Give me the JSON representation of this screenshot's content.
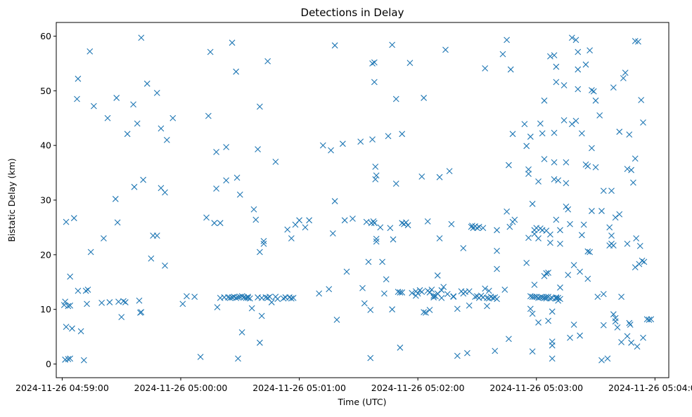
{
  "chart_data": {
    "type": "scatter",
    "title": "Detections in Delay",
    "xlabel": "Time (UTC)",
    "ylabel": "Bistatic Delay (km)",
    "x_unit": "seconds after 2024-11-26 04:59:00",
    "xlim": [
      -3,
      307
    ],
    "ylim": [
      -2.5,
      62.5
    ],
    "x_ticks": [
      0,
      60,
      120,
      180,
      240,
      300
    ],
    "x_tick_labels": [
      "2024-11-26 04:59:00",
      "2024-11-26 05:00:00",
      "2024-11-26 05:01:00",
      "2024-11-26 05:02:00",
      "2024-11-26 05:03:00",
      "2024-11-26 05:04:00"
    ],
    "y_ticks": [
      0,
      10,
      20,
      30,
      40,
      50,
      60
    ],
    "y_tick_labels": [
      "0",
      "10",
      "20",
      "30",
      "40",
      "50",
      "60"
    ],
    "marker": "x",
    "color": "#1f77b4",
    "grid": false,
    "points": [
      [
        1,
        10.8
      ],
      [
        1.5,
        11.4
      ],
      [
        2,
        6.8
      ],
      [
        3,
        10.6
      ],
      [
        4,
        10.7
      ],
      [
        1.5,
        0.8
      ],
      [
        3,
        0.9
      ],
      [
        4,
        1
      ],
      [
        5,
        6.5
      ],
      [
        2,
        26
      ],
      [
        4,
        16
      ],
      [
        6,
        26.7
      ],
      [
        8,
        52.2
      ],
      [
        7.5,
        48.5
      ],
      [
        8,
        13.4
      ],
      [
        9.5,
        6
      ],
      [
        11,
        0.7
      ],
      [
        12,
        13.4
      ],
      [
        13,
        13.6
      ],
      [
        12.5,
        11
      ],
      [
        14,
        57.2
      ],
      [
        14.5,
        20.5
      ],
      [
        16,
        47.2
      ],
      [
        20,
        11.2
      ],
      [
        21,
        23
      ],
      [
        23,
        45
      ],
      [
        24,
        11.3
      ],
      [
        27,
        30.2
      ],
      [
        27.5,
        48.7
      ],
      [
        28,
        25.9
      ],
      [
        28.5,
        11.4
      ],
      [
        30,
        8.6
      ],
      [
        31,
        11.5
      ],
      [
        32,
        11.3
      ],
      [
        33,
        42.1
      ],
      [
        36,
        47.5
      ],
      [
        36.5,
        32.4
      ],
      [
        38,
        44
      ],
      [
        39,
        11.6
      ],
      [
        39.5,
        9.4
      ],
      [
        40,
        9.5
      ],
      [
        40,
        59.7
      ],
      [
        41,
        33.7
      ],
      [
        43,
        51.3
      ],
      [
        45,
        19.3
      ],
      [
        46,
        23.5
      ],
      [
        48,
        23.5
      ],
      [
        48,
        49.6
      ],
      [
        50,
        43.1
      ],
      [
        50,
        32.2
      ],
      [
        52,
        31.4
      ],
      [
        52,
        18
      ],
      [
        53,
        41
      ],
      [
        56,
        45
      ],
      [
        61,
        11
      ],
      [
        63,
        12.4
      ],
      [
        67,
        12.3
      ],
      [
        70,
        1.3
      ],
      [
        73,
        26.8
      ],
      [
        74,
        45.4
      ],
      [
        75,
        57.1
      ],
      [
        77,
        25.8
      ],
      [
        78,
        38.8
      ],
      [
        78,
        32.1
      ],
      [
        78.5,
        10.4
      ],
      [
        80,
        25.8
      ],
      [
        80,
        12.1
      ],
      [
        82,
        12.2
      ],
      [
        83,
        33.6
      ],
      [
        83,
        39.7
      ],
      [
        84,
        12.2
      ],
      [
        85,
        12.1
      ],
      [
        86,
        12.2
      ],
      [
        86,
        58.8
      ],
      [
        87,
        12.3
      ],
      [
        88,
        12.1
      ],
      [
        88,
        53.5
      ],
      [
        88.5,
        34.1
      ],
      [
        89,
        12.2
      ],
      [
        89,
        1
      ],
      [
        90,
        12.3
      ],
      [
        90,
        31
      ],
      [
        91,
        12.4
      ],
      [
        91,
        5.8
      ],
      [
        92,
        12.2
      ],
      [
        93,
        12.1
      ],
      [
        94,
        12.3
      ],
      [
        94,
        12.1
      ],
      [
        95,
        12
      ],
      [
        96,
        10.2
      ],
      [
        97,
        28.3
      ],
      [
        98,
        26.4
      ],
      [
        99,
        39.3
      ],
      [
        99,
        12.2
      ],
      [
        100,
        20.5
      ],
      [
        100,
        47.1
      ],
      [
        100,
        3.9
      ],
      [
        101,
        12.1
      ],
      [
        101,
        8.8
      ],
      [
        102,
        22.5
      ],
      [
        102,
        22
      ],
      [
        103,
        12.2
      ],
      [
        104,
        55.4
      ],
      [
        104,
        12.1
      ],
      [
        105,
        12.3
      ],
      [
        106,
        11.3
      ],
      [
        108,
        12.3
      ],
      [
        108,
        37
      ],
      [
        109,
        11.9
      ],
      [
        112,
        12
      ],
      [
        113,
        12.2
      ],
      [
        114,
        24.6
      ],
      [
        115,
        12.2
      ],
      [
        116,
        12
      ],
      [
        116,
        23
      ],
      [
        117,
        12.1
      ],
      [
        118,
        25.5
      ],
      [
        120,
        26.3
      ],
      [
        123,
        25
      ],
      [
        125,
        26.3
      ],
      [
        130,
        12.9
      ],
      [
        132,
        40
      ],
      [
        135,
        13.7
      ],
      [
        136,
        39.1
      ],
      [
        137,
        23.9
      ],
      [
        138,
        29.8
      ],
      [
        138,
        58.3
      ],
      [
        139,
        8.1
      ],
      [
        142,
        40.3
      ],
      [
        143,
        26.3
      ],
      [
        144,
        16.9
      ],
      [
        147,
        26.6
      ],
      [
        151,
        40.7
      ],
      [
        152,
        13.9
      ],
      [
        153,
        11.1
      ],
      [
        154,
        26
      ],
      [
        155,
        18.7
      ],
      [
        156,
        9.9
      ],
      [
        156,
        1.1
      ],
      [
        156.5,
        25.8
      ],
      [
        157,
        41.1
      ],
      [
        157,
        55
      ],
      [
        157.5,
        26.1
      ],
      [
        158,
        55.2
      ],
      [
        158,
        25.8
      ],
      [
        158,
        51.6
      ],
      [
        158.5,
        36.1
      ],
      [
        158.5,
        33.8
      ],
      [
        159,
        22.9
      ],
      [
        159,
        22.4
      ],
      [
        159,
        34.5
      ],
      [
        161,
        25
      ],
      [
        162,
        18.7
      ],
      [
        163,
        12.9
      ],
      [
        164,
        15.5
      ],
      [
        165,
        41.7
      ],
      [
        166,
        24.9
      ],
      [
        167,
        58.4
      ],
      [
        167,
        10
      ],
      [
        167.5,
        22.8
      ],
      [
        169,
        48.5
      ],
      [
        169,
        33
      ],
      [
        170,
        13.2
      ],
      [
        171,
        13.1
      ],
      [
        171,
        3
      ],
      [
        172,
        13.1
      ],
      [
        172,
        25.8
      ],
      [
        172,
        42.1
      ],
      [
        173,
        25.6
      ],
      [
        174,
        25.9
      ],
      [
        175,
        25.4
      ],
      [
        176,
        55.1
      ],
      [
        177,
        13
      ],
      [
        179,
        13.3
      ],
      [
        179,
        12.5
      ],
      [
        180,
        12.9
      ],
      [
        181,
        13.5
      ],
      [
        182,
        13.2
      ],
      [
        182,
        34.3
      ],
      [
        183,
        48.7
      ],
      [
        183,
        9.5
      ],
      [
        184,
        9.4
      ],
      [
        185,
        26.1
      ],
      [
        185,
        13.4
      ],
      [
        186,
        13.1
      ],
      [
        186,
        9.9
      ],
      [
        187,
        13.6
      ],
      [
        188,
        12.5
      ],
      [
        188,
        12.2
      ],
      [
        189,
        12.4
      ],
      [
        190,
        12.9
      ],
      [
        190,
        16.2
      ],
      [
        191,
        23
      ],
      [
        191,
        34.2
      ],
      [
        192,
        13.5
      ],
      [
        192,
        12.1
      ],
      [
        193,
        14.1
      ],
      [
        194,
        57.5
      ],
      [
        195,
        12.8
      ],
      [
        196,
        35.3
      ],
      [
        197,
        25.6
      ],
      [
        198,
        12.4
      ],
      [
        198,
        12.3
      ],
      [
        200,
        10.1
      ],
      [
        200,
        1.5
      ],
      [
        202,
        13.3
      ],
      [
        203,
        21.2
      ],
      [
        203,
        12.9
      ],
      [
        204,
        13.2
      ],
      [
        205,
        2
      ],
      [
        206,
        13.3
      ],
      [
        206,
        10.7
      ],
      [
        207,
        25.1
      ],
      [
        207.5,
        25.3
      ],
      [
        208,
        24.9
      ],
      [
        209,
        25.2
      ],
      [
        209,
        12.3
      ],
      [
        210,
        24.9
      ],
      [
        210,
        12.4
      ],
      [
        211,
        25.1
      ],
      [
        211,
        12.1
      ],
      [
        212,
        12.5
      ],
      [
        213,
        24.9
      ],
      [
        213,
        12.2
      ],
      [
        214,
        54.1
      ],
      [
        214,
        13.8
      ],
      [
        215,
        12.1
      ],
      [
        215,
        10.6
      ],
      [
        216,
        13.4
      ],
      [
        216,
        12
      ],
      [
        217,
        12.3
      ],
      [
        218,
        12.1
      ],
      [
        219,
        12.2
      ],
      [
        219,
        2.4
      ],
      [
        220,
        11.9
      ],
      [
        220,
        24.5
      ],
      [
        220,
        20.7
      ],
      [
        220,
        17.4
      ],
      [
        223,
        56.7
      ],
      [
        224,
        13.6
      ],
      [
        225,
        59.3
      ],
      [
        225,
        27.9
      ],
      [
        226,
        36.4
      ],
      [
        226,
        4.6
      ],
      [
        226.5,
        25.1
      ],
      [
        227,
        53.9
      ],
      [
        228,
        26
      ],
      [
        228,
        42.1
      ],
      [
        229,
        26.4
      ],
      [
        234,
        43.9
      ],
      [
        235,
        18.5
      ],
      [
        235,
        39.9
      ],
      [
        236,
        23.1
      ],
      [
        236,
        34.8
      ],
      [
        236,
        35.6
      ],
      [
        237,
        10.1
      ],
      [
        237,
        12.4
      ],
      [
        237,
        41.6
      ],
      [
        238,
        2.3
      ],
      [
        238,
        29.3
      ],
      [
        238,
        9.2
      ],
      [
        238,
        12.3
      ],
      [
        239,
        23.8
      ],
      [
        239,
        24.5
      ],
      [
        239,
        12.3
      ],
      [
        239,
        14.5
      ],
      [
        240,
        12.3
      ],
      [
        240,
        24.9
      ],
      [
        241,
        7.6
      ],
      [
        241,
        33.4
      ],
      [
        241,
        12.1
      ],
      [
        241,
        23
      ],
      [
        242,
        24.8
      ],
      [
        242,
        12.2
      ],
      [
        242,
        44
      ],
      [
        243,
        12.2
      ],
      [
        243,
        24.5
      ],
      [
        243,
        42.2
      ],
      [
        244,
        37.5
      ],
      [
        244,
        12.1
      ],
      [
        244,
        16.1
      ],
      [
        244,
        48.2
      ],
      [
        245,
        16.6
      ],
      [
        245,
        24.4
      ],
      [
        245,
        12
      ],
      [
        245,
        12.3
      ],
      [
        246,
        16.7
      ],
      [
        246,
        12.3
      ],
      [
        246,
        7.9
      ],
      [
        247,
        12
      ],
      [
        247,
        22.2
      ],
      [
        247,
        56.3
      ],
      [
        247,
        23.7
      ],
      [
        248,
        3.4
      ],
      [
        248,
        4.1
      ],
      [
        248,
        1
      ],
      [
        248,
        12.1
      ],
      [
        248,
        9.6
      ],
      [
        249,
        42.3
      ],
      [
        249,
        56.5
      ],
      [
        249,
        36.9
      ],
      [
        249,
        33.8
      ],
      [
        250,
        12
      ],
      [
        250,
        51.6
      ],
      [
        250,
        12.2
      ],
      [
        250,
        26.4
      ],
      [
        250,
        54.4
      ],
      [
        251,
        12.1
      ],
      [
        251,
        11.6
      ],
      [
        251,
        33.6
      ],
      [
        252,
        22
      ],
      [
        252,
        24.5
      ],
      [
        252,
        14
      ],
      [
        252,
        11.9
      ],
      [
        254,
        44.6
      ],
      [
        254,
        51
      ],
      [
        255,
        36.9
      ],
      [
        255,
        33.1
      ],
      [
        255,
        28.8
      ],
      [
        256,
        28.3
      ],
      [
        256,
        16.3
      ],
      [
        257,
        25.6
      ],
      [
        257,
        4.8
      ],
      [
        258,
        59.7
      ],
      [
        258,
        43.9
      ],
      [
        259,
        18.1
      ],
      [
        259,
        7.2
      ],
      [
        260,
        44.5
      ],
      [
        260,
        59.3
      ],
      [
        261,
        53.9
      ],
      [
        261,
        57.1
      ],
      [
        261,
        50.3
      ],
      [
        262,
        5.2
      ],
      [
        262,
        16.9
      ],
      [
        263,
        42.2
      ],
      [
        263,
        23.6
      ],
      [
        264,
        25.5
      ],
      [
        265,
        54.8
      ],
      [
        265,
        36.5
      ],
      [
        266,
        36.2
      ],
      [
        266,
        20.6
      ],
      [
        266,
        15.6
      ],
      [
        267,
        20.5
      ],
      [
        267,
        57.4
      ],
      [
        268,
        39.5
      ],
      [
        268,
        28
      ],
      [
        268,
        50.1
      ],
      [
        269,
        49.9
      ],
      [
        270,
        48.2
      ],
      [
        270,
        36
      ],
      [
        271,
        12.3
      ],
      [
        272,
        45.5
      ],
      [
        273,
        28
      ],
      [
        273,
        0.7
      ],
      [
        274,
        12.8
      ],
      [
        274,
        31.7
      ],
      [
        274,
        7.1
      ],
      [
        276,
        1
      ],
      [
        277,
        21.7
      ],
      [
        277,
        25
      ],
      [
        278,
        22
      ],
      [
        278,
        31.7
      ],
      [
        278,
        23.5
      ],
      [
        279,
        21.7
      ],
      [
        279,
        50.6
      ],
      [
        279,
        9.1
      ],
      [
        280,
        7.8
      ],
      [
        280,
        8.4
      ],
      [
        280,
        26.8
      ],
      [
        281,
        6.7
      ],
      [
        282,
        42.5
      ],
      [
        282,
        27.4
      ],
      [
        283,
        12.3
      ],
      [
        283,
        4
      ],
      [
        284,
        52.3
      ],
      [
        285,
        53.3
      ],
      [
        286,
        5.1
      ],
      [
        286,
        35.7
      ],
      [
        286,
        22
      ],
      [
        287,
        42
      ],
      [
        287,
        7.5
      ],
      [
        287.5,
        7.2
      ],
      [
        288,
        35.5
      ],
      [
        288,
        3.9
      ],
      [
        289,
        33.2
      ],
      [
        290,
        59.1
      ],
      [
        290,
        37.6
      ],
      [
        290,
        17.7
      ],
      [
        290.5,
        23
      ],
      [
        291,
        3.2
      ],
      [
        291.5,
        59
      ],
      [
        292,
        18.3
      ],
      [
        292.5,
        21.6
      ],
      [
        293,
        48.3
      ],
      [
        293.5,
        18.9
      ],
      [
        294,
        44.2
      ],
      [
        294,
        4.8
      ],
      [
        294.5,
        18.7
      ],
      [
        296,
        8.2
      ],
      [
        297,
        8.1
      ],
      [
        298,
        8.2
      ]
    ]
  }
}
